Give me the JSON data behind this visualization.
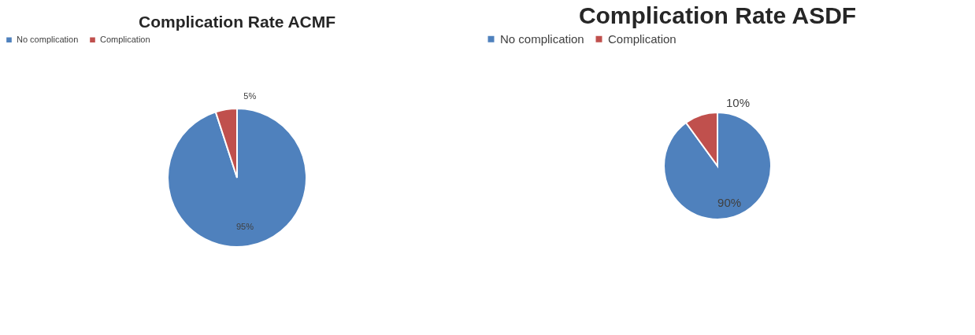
{
  "chart_data": [
    {
      "type": "pie",
      "title": "Complication Rate ACMF",
      "categories": [
        "No complication",
        "Complication"
      ],
      "values": [
        95,
        5
      ],
      "colors": [
        "#4f81bd",
        "#c0504d"
      ],
      "value_labels": [
        "95%",
        "5%"
      ],
      "legend": "top"
    },
    {
      "type": "pie",
      "title": "Complication Rate ASDF",
      "categories": [
        "No complication",
        "Complication"
      ],
      "values": [
        90,
        10
      ],
      "colors": [
        "#4f81bd",
        "#c0504d"
      ],
      "value_labels": [
        "90%",
        "10%"
      ],
      "legend": "top"
    }
  ]
}
